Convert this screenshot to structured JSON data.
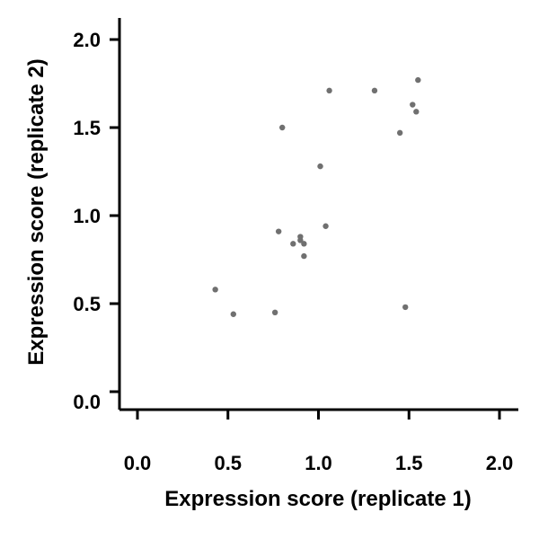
{
  "chart_data": {
    "type": "scatter",
    "title": "",
    "xlabel": "Expression score (replicate 1)",
    "ylabel": "Expression score (replicate 2)",
    "xlim": [
      -0.05,
      2.1
    ],
    "ylim": [
      -0.05,
      2.1
    ],
    "xticks": [
      0.0,
      0.5,
      1.0,
      1.5,
      2.0
    ],
    "xtick_labels": [
      "0.0",
      "0.5",
      "1.0",
      "1.5",
      "2.0"
    ],
    "yticks": [
      0.0,
      0.5,
      1.0,
      1.5,
      2.0
    ],
    "ytick_labels": [
      "0.0",
      "0.5",
      "1.0",
      "1.5",
      "2.0"
    ],
    "grid": false,
    "point_color": "#707070",
    "series": [
      {
        "points": [
          {
            "x": 0.43,
            "y": 0.58
          },
          {
            "x": 0.53,
            "y": 0.44
          },
          {
            "x": 0.76,
            "y": 0.45
          },
          {
            "x": 0.78,
            "y": 0.91
          },
          {
            "x": 0.8,
            "y": 1.5
          },
          {
            "x": 0.86,
            "y": 0.84
          },
          {
            "x": 0.9,
            "y": 0.86
          },
          {
            "x": 0.9,
            "y": 0.88
          },
          {
            "x": 0.92,
            "y": 0.84
          },
          {
            "x": 0.92,
            "y": 0.77
          },
          {
            "x": 1.01,
            "y": 1.28
          },
          {
            "x": 1.04,
            "y": 0.94
          },
          {
            "x": 1.06,
            "y": 1.71
          },
          {
            "x": 1.31,
            "y": 1.71
          },
          {
            "x": 1.45,
            "y": 1.47
          },
          {
            "x": 1.48,
            "y": 0.48
          },
          {
            "x": 1.52,
            "y": 1.63
          },
          {
            "x": 1.54,
            "y": 1.59
          },
          {
            "x": 1.55,
            "y": 1.77
          }
        ]
      }
    ]
  }
}
